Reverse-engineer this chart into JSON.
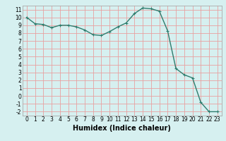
{
  "x": [
    0,
    1,
    2,
    3,
    4,
    5,
    6,
    7,
    8,
    9,
    10,
    11,
    12,
    13,
    14,
    15,
    16,
    17,
    18,
    19,
    20,
    21,
    22,
    23
  ],
  "y": [
    10,
    9.2,
    9.1,
    8.7,
    9.0,
    9.0,
    8.8,
    8.4,
    7.8,
    7.7,
    8.2,
    8.8,
    9.3,
    10.5,
    11.2,
    11.1,
    10.8,
    8.3,
    3.5,
    2.7,
    2.3,
    -0.8,
    -2.0,
    -2.0
  ],
  "line_color": "#2e7d6e",
  "marker": "+",
  "marker_size": 3,
  "bg_color": "#d6f0f0",
  "grid_major_color": "#e8a0a0",
  "grid_minor_color": "#e8c8c8",
  "xlabel": "Humidex (Indice chaleur)",
  "xlim": [
    -0.5,
    23.5
  ],
  "ylim": [
    -2.5,
    11.5
  ],
  "yticks": [
    -2,
    -1,
    0,
    1,
    2,
    3,
    4,
    5,
    6,
    7,
    8,
    9,
    10,
    11
  ],
  "xticks": [
    0,
    1,
    2,
    3,
    4,
    5,
    6,
    7,
    8,
    9,
    10,
    11,
    12,
    13,
    14,
    15,
    16,
    17,
    18,
    19,
    20,
    21,
    22,
    23
  ],
  "tick_fontsize": 5.5,
  "label_fontsize": 7,
  "linewidth": 1.0,
  "markeredgewidth": 0.8
}
